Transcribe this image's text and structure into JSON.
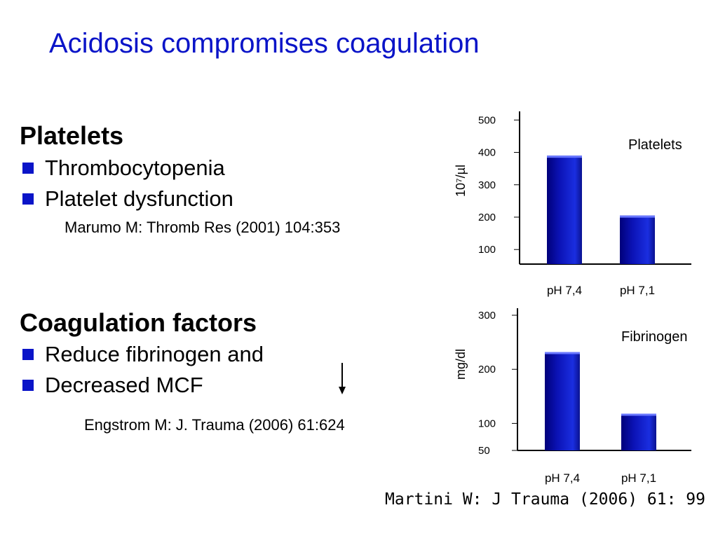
{
  "slide": {
    "title": "Acidosis compromises coagulation",
    "accent_color": "#0a14c8",
    "bar_color": "#0b12b4"
  },
  "platelets_section": {
    "heading": "Platelets",
    "bullets": [
      "Thrombocytopenia",
      "Platelet dysfunction"
    ],
    "reference": "Marumo M: Thromb Res (2001) 104:353"
  },
  "coagulation_section": {
    "heading": "Coagulation factors",
    "bullets": [
      "Reduce fibrinogen and",
      "Decreased MCF"
    ],
    "reference": "Engstrom M: J. Trauma (2006) 61:624",
    "arrow_icon": "down-arrow-icon"
  },
  "citation": "Martini W: J Trauma (2006) 61: 99",
  "chart_data": [
    {
      "type": "bar",
      "title": "Platelets",
      "ylabel": "10⁷/µl",
      "categories": [
        "pH 7,4",
        "pH 7,1"
      ],
      "values": [
        390,
        205
      ],
      "yticks": [
        100,
        200,
        300,
        400,
        500
      ],
      "ytick_labels": [
        "100",
        "200",
        "300",
        "400",
        "500"
      ],
      "ylim": [
        55,
        505
      ],
      "grid": false
    },
    {
      "type": "bar",
      "title": "Fibrinogen",
      "ylabel": "mg/dl",
      "categories": [
        "pH 7,4",
        "pH 7,1"
      ],
      "values": [
        232,
        118
      ],
      "yticks": [
        50,
        100,
        200,
        300
      ],
      "ytick_labels": [
        "50",
        "100",
        "200",
        "300"
      ],
      "ylim": [
        50,
        300
      ],
      "grid": false
    }
  ]
}
